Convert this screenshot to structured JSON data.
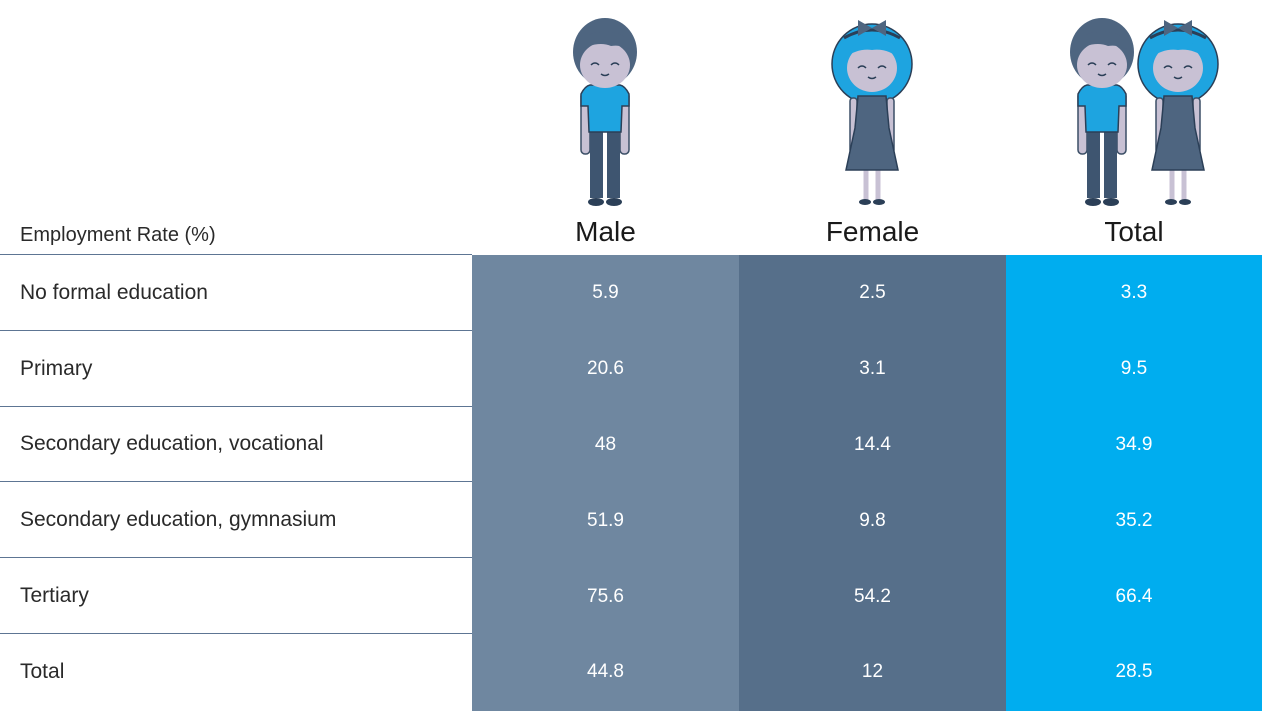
{
  "table": {
    "title": "Employment Rate (%)",
    "columns": [
      "Male",
      "Female",
      "Total"
    ],
    "rows": [
      {
        "label": "No formal education",
        "values": [
          5.9,
          2.5,
          3.3
        ]
      },
      {
        "label": "Primary",
        "values": [
          20.6,
          3.1,
          9.5
        ]
      },
      {
        "label": "Secondary education, vocational",
        "values": [
          48,
          14.4,
          34.9
        ]
      },
      {
        "label": "Secondary education, gymnasium",
        "values": [
          51.9,
          9.8,
          35.2
        ]
      },
      {
        "label": "Tertiary",
        "values": [
          75.6,
          54.2,
          66.4
        ]
      },
      {
        "label": "Total",
        "values": [
          44.8,
          12,
          28.5
        ]
      }
    ]
  }
}
